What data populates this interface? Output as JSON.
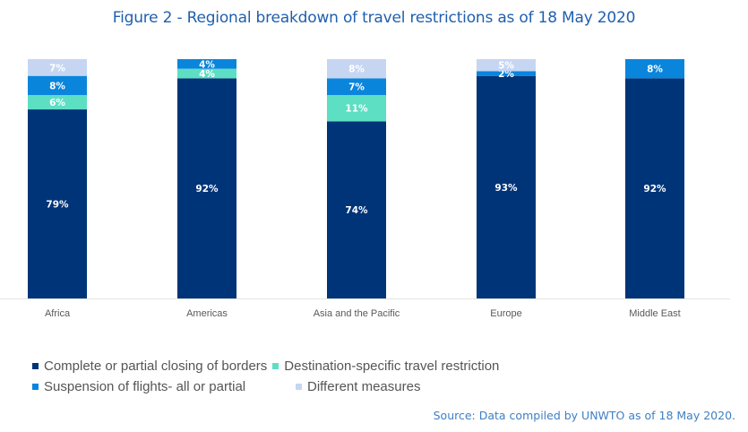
{
  "chart_data": {
    "type": "bar",
    "stacked": true,
    "percent_stacked": true,
    "title": "Figure 2 - Regional breakdown of travel restrictions as of 18 May 2020",
    "xlabel": "",
    "ylabel": "",
    "ylim": [
      0,
      100
    ],
    "grid": false,
    "categories": [
      "Africa",
      "Americas",
      "Asia and the Pacific",
      "Europe",
      "Middle East"
    ],
    "series": [
      {
        "name": "Complete or partial closing of borders",
        "color": "#003478",
        "values": [
          79,
          92,
          74,
          93,
          92
        ]
      },
      {
        "name": "Destination-specific travel restriction",
        "color": "#5ddfc4",
        "values": [
          6,
          4,
          11,
          0,
          0
        ]
      },
      {
        "name": "Suspension of flights- all or partial",
        "color": "#0a85dc",
        "values": [
          8,
          4,
          7,
          2,
          8
        ]
      },
      {
        "name": "Different measures",
        "color": "#c6d6f2",
        "values": [
          7,
          0,
          8,
          5,
          0
        ]
      }
    ],
    "data_labels": true,
    "legend_position": "bottom-left",
    "source": "Source: Data compiled by UNWTO as of 18 May 2020."
  },
  "legend": {
    "rows": [
      [
        0,
        1
      ],
      [
        2,
        3
      ]
    ]
  }
}
